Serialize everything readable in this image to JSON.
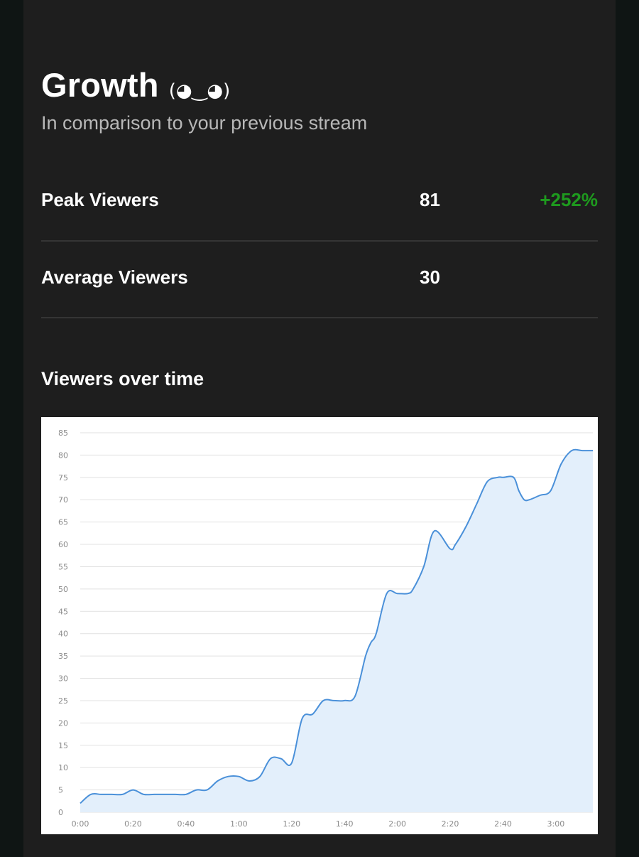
{
  "header": {
    "title": "Growth",
    "kaomoji": "(◕‿◕)",
    "subtitle": "In comparison to your previous stream"
  },
  "stats": [
    {
      "label": "Peak Viewers",
      "value": "81",
      "change": "+252%"
    },
    {
      "label": "Average Viewers",
      "value": "30",
      "change": ""
    }
  ],
  "section": {
    "title": "Viewers over time"
  },
  "colors": {
    "background": "#1e1e1e",
    "positive": "#1e9a1e",
    "line": "#4a90d9",
    "area": "#e3effb"
  },
  "chart_data": {
    "type": "area",
    "title": "",
    "xlabel": "",
    "ylabel": "",
    "ylim": [
      0,
      85
    ],
    "xlim": [
      0,
      194
    ],
    "yticks": [
      0,
      5,
      10,
      15,
      20,
      25,
      30,
      35,
      40,
      45,
      50,
      55,
      60,
      65,
      70,
      75,
      80,
      85
    ],
    "xticks": [
      {
        "value": 0,
        "label": "0:00"
      },
      {
        "value": 20,
        "label": "0:20"
      },
      {
        "value": 40,
        "label": "0:40"
      },
      {
        "value": 60,
        "label": "1:00"
      },
      {
        "value": 80,
        "label": "1:20"
      },
      {
        "value": 100,
        "label": "1:40"
      },
      {
        "value": 120,
        "label": "2:00"
      },
      {
        "value": 140,
        "label": "2:20"
      },
      {
        "value": 160,
        "label": "2:40"
      },
      {
        "value": 180,
        "label": "3:00"
      }
    ],
    "grid": true,
    "series": [
      {
        "x": [
          0,
          4,
          8,
          12,
          16,
          20,
          24,
          28,
          32,
          36,
          40,
          44,
          48,
          52,
          56,
          60,
          64,
          68,
          72,
          76,
          80,
          84,
          88,
          92,
          96,
          100,
          104,
          108,
          110,
          112,
          116,
          120,
          124,
          126,
          130,
          134,
          140,
          142,
          146,
          150,
          154,
          158,
          160,
          164,
          166,
          168,
          170,
          174,
          178,
          182,
          186,
          190,
          194
        ],
        "y": [
          2,
          4,
          4,
          4,
          4,
          5,
          4,
          4,
          4,
          4,
          4,
          5,
          5,
          7,
          8,
          8,
          7,
          8,
          12,
          12,
          11,
          21,
          22,
          25,
          25,
          25,
          26,
          35,
          38,
          40,
          49,
          49,
          49,
          50,
          55,
          63,
          59,
          60,
          64,
          69,
          74,
          75,
          75,
          75,
          72,
          70,
          70,
          71,
          72,
          78,
          81,
          81,
          81
        ]
      }
    ]
  }
}
